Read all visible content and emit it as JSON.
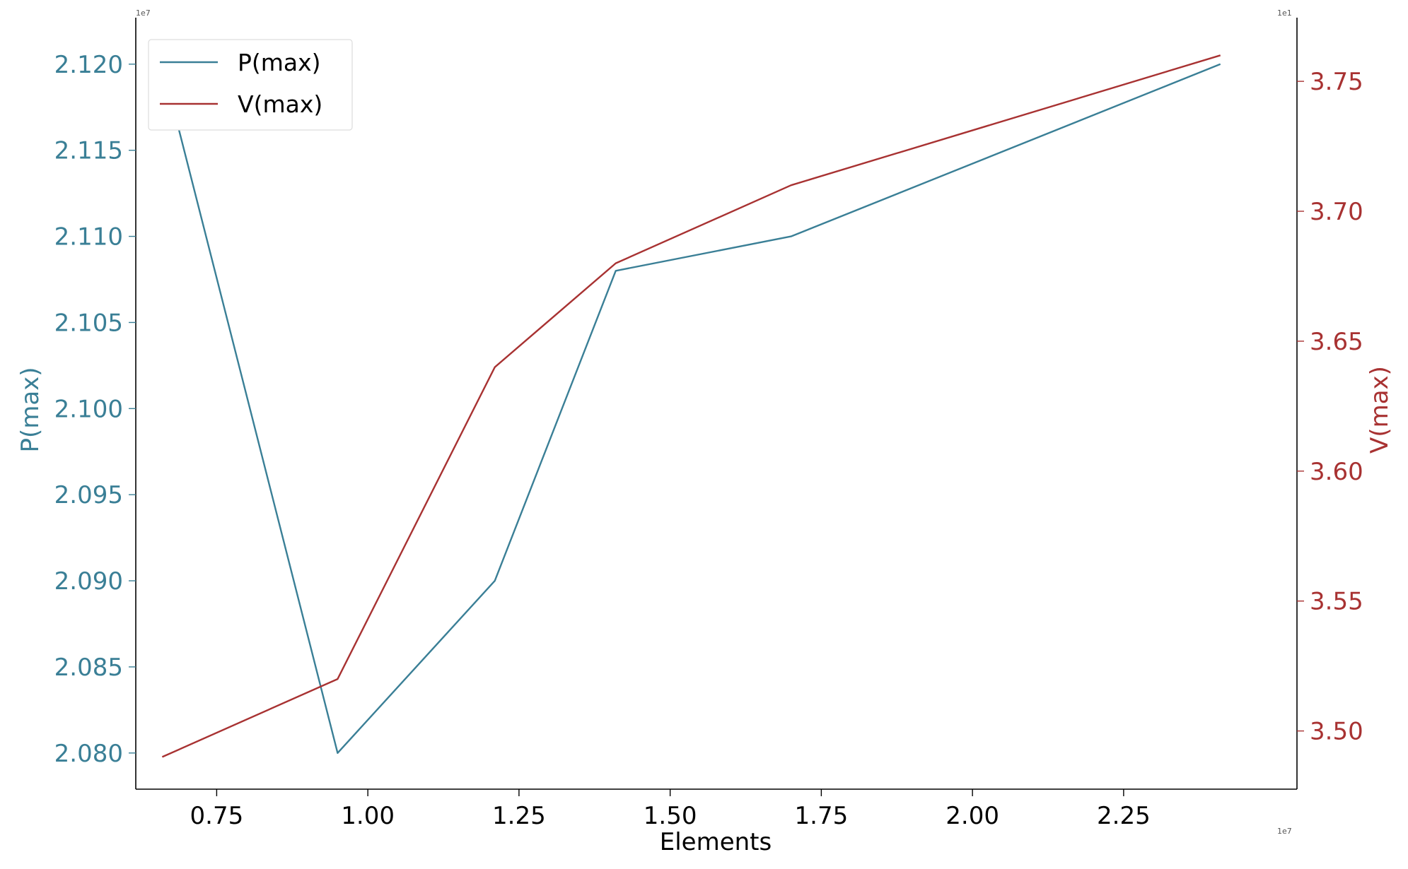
{
  "chart_data": {
    "type": "line",
    "xlabel": "Elements",
    "x_offset_label": "1e7",
    "xlim": [
      0.6162,
      2.5367
    ],
    "x_ticks": [
      "0.75",
      "1.00",
      "1.25",
      "1.50",
      "1.75",
      "2.00",
      "2.25"
    ],
    "x_tick_values": [
      0.75,
      1.0,
      1.25,
      1.5,
      1.75,
      2.0,
      2.25
    ],
    "left_axis": {
      "label": "P(max)",
      "offset_label": "1e7",
      "color": "#3a7f96",
      "ylim": [
        2.0779,
        2.1227
      ],
      "ticks": [
        "2.080",
        "2.085",
        "2.090",
        "2.095",
        "2.100",
        "2.105",
        "2.110",
        "2.115",
        "2.120"
      ],
      "tick_values": [
        2.08,
        2.085,
        2.09,
        2.095,
        2.1,
        2.105,
        2.11,
        2.115,
        2.12
      ]
    },
    "right_axis": {
      "label": "V(max)",
      "offset_label": "1e1",
      "color": "#a83232",
      "ylim": [
        3.4776,
        3.7745
      ],
      "ticks": [
        "3.50",
        "3.55",
        "3.60",
        "3.65",
        "3.70",
        "3.75"
      ],
      "tick_values": [
        3.5,
        3.55,
        3.6,
        3.65,
        3.7,
        3.75
      ]
    },
    "series": [
      {
        "name": "P(max)",
        "axis": "left",
        "color": "#3a7f96",
        "x": [
          0.66,
          0.95,
          1.21,
          1.41,
          1.7,
          2.41
        ],
        "values": [
          2.12,
          2.08,
          2.09,
          2.108,
          2.11,
          2.12
        ]
      },
      {
        "name": "V(max)",
        "axis": "right",
        "color": "#a83232",
        "x": [
          0.66,
          0.95,
          1.21,
          1.41,
          1.7,
          2.41
        ],
        "values": [
          3.49,
          3.52,
          3.64,
          3.68,
          3.71,
          3.76
        ]
      }
    ],
    "legend": {
      "placement": "top-left",
      "entries": [
        "P(max)",
        "V(max)"
      ]
    },
    "grid": false
  }
}
